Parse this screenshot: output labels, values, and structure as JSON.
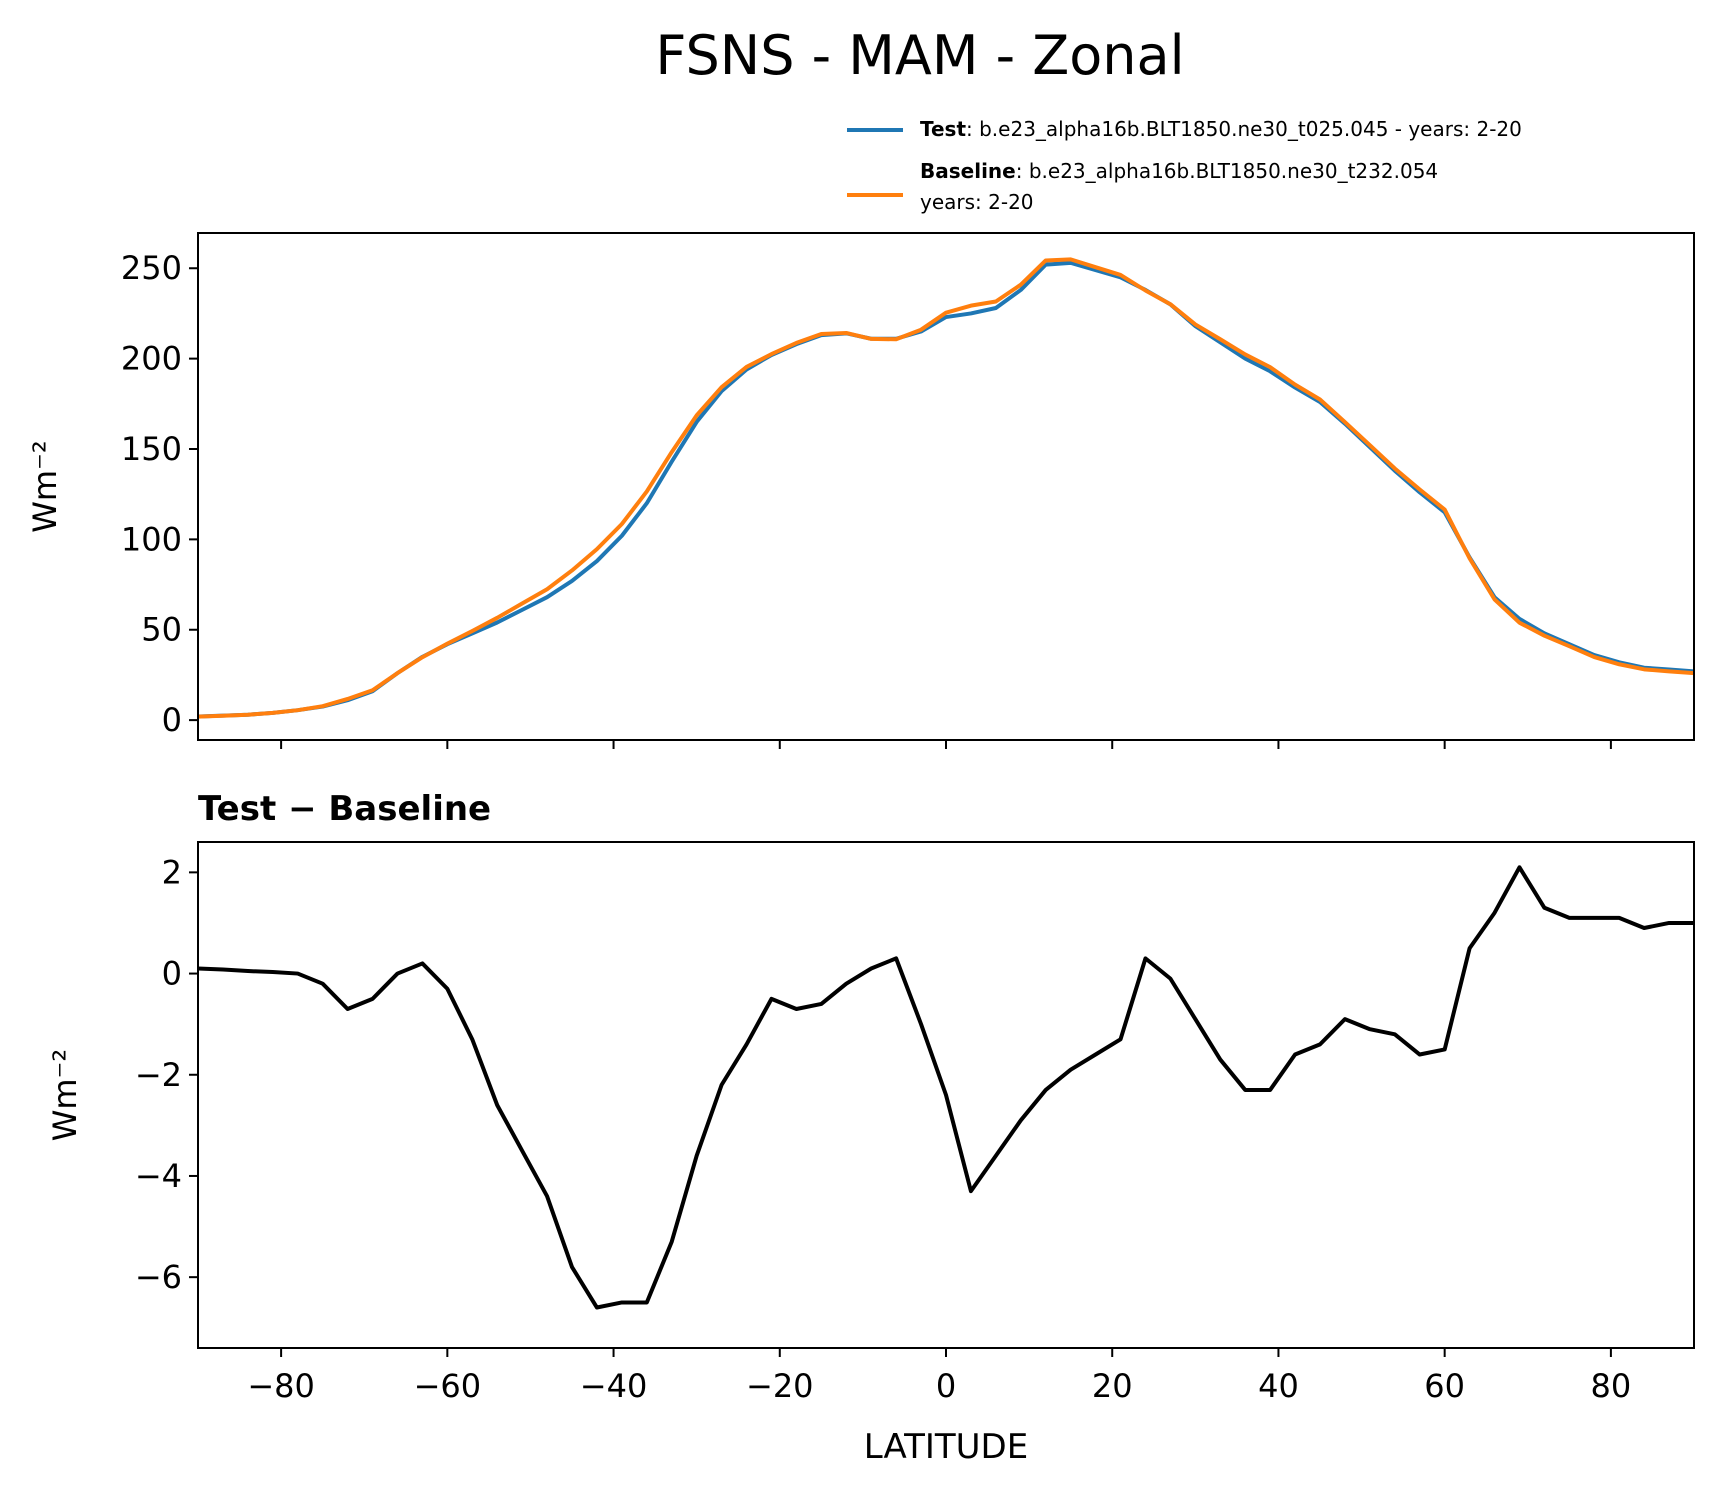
{
  "chart_data": [
    {
      "type": "line",
      "title": "FSNS - MAM - Zonal",
      "ylabel": "Wm⁻²",
      "x": [
        -90,
        -87,
        -84,
        -81,
        -78,
        -75,
        -72,
        -69,
        -66,
        -63,
        -60,
        -57,
        -54,
        -51,
        -48,
        -45,
        -42,
        -39,
        -36,
        -33,
        -30,
        -27,
        -24,
        -21,
        -18,
        -15,
        -12,
        -9,
        -6,
        -3,
        0,
        3,
        6,
        9,
        12,
        15,
        18,
        21,
        24,
        27,
        30,
        33,
        36,
        39,
        42,
        45,
        48,
        51,
        54,
        57,
        60,
        63,
        66,
        69,
        72,
        75,
        78,
        81,
        84,
        87,
        90
      ],
      "series": [
        {
          "name": "Test",
          "label_lines": [
            ": b.e23_alpha16b.BLT1850.ne30_t025.045 - years: 2-20"
          ],
          "color": "#1f77b4",
          "values": [
            2,
            2.5,
            3,
            4,
            5.5,
            7.5,
            11,
            16,
            26,
            35,
            42,
            48,
            54,
            61,
            68,
            77,
            88,
            102,
            120,
            143,
            165,
            182,
            194,
            202,
            208,
            213,
            214,
            211,
            211,
            215,
            223,
            225,
            228,
            238,
            252,
            253,
            249,
            245,
            238,
            230,
            218,
            209,
            200,
            193,
            184,
            176,
            164,
            151,
            138,
            126,
            115,
            90,
            68,
            56,
            48,
            42,
            36,
            32,
            29,
            28,
            27
          ]
        },
        {
          "name": "Baseline",
          "label_lines": [
            ": b.e23_alpha16b.BLT1850.ne30_t232.054",
            "years: 2-20"
          ],
          "color": "#ff7f0e",
          "values": [
            1.9,
            2.4,
            3.0,
            4.0,
            5.5,
            7.7,
            11.7,
            16.5,
            26,
            34.8,
            42.3,
            49.3,
            56.6,
            64.5,
            72.4,
            82.8,
            94.6,
            108.5,
            126.5,
            148.3,
            168.6,
            184.2,
            195.4,
            202.5,
            208.7,
            213.6,
            214.2,
            210.9,
            210.7,
            216,
            225.4,
            229.3,
            231.6,
            240.9,
            254.3,
            254.9,
            250.6,
            246.3,
            237.7,
            230.1,
            218.9,
            210.7,
            202.3,
            195.3,
            185.6,
            177.4,
            164.9,
            152.1,
            139.2,
            127.6,
            116.5,
            89.5,
            66.8,
            53.9,
            46.7,
            40.9,
            34.9,
            30.9,
            28.1,
            27,
            26
          ]
        }
      ],
      "xlim": [
        -90,
        90
      ],
      "xticks": [
        -80,
        -60,
        -40,
        -20,
        0,
        20,
        40,
        60,
        80
      ],
      "ylim": [
        -11,
        269.5
      ],
      "yticks": [
        0,
        50,
        100,
        150,
        200,
        250
      ]
    },
    {
      "type": "line",
      "title": "Test − Baseline",
      "ylabel": "Wm⁻²",
      "xlabel": "LATITUDE",
      "x": [
        -90,
        -87,
        -84,
        -81,
        -78,
        -75,
        -72,
        -69,
        -66,
        -63,
        -60,
        -57,
        -54,
        -51,
        -48,
        -45,
        -42,
        -39,
        -36,
        -33,
        -30,
        -27,
        -24,
        -21,
        -18,
        -15,
        -12,
        -9,
        -6,
        -3,
        0,
        3,
        6,
        9,
        12,
        15,
        18,
        21,
        24,
        27,
        30,
        33,
        36,
        39,
        42,
        45,
        48,
        51,
        54,
        57,
        60,
        63,
        66,
        69,
        72,
        75,
        78,
        81,
        84,
        87,
        90
      ],
      "series": [
        {
          "color": "#000000",
          "values": [
            0.1,
            0.08,
            0.05,
            0.03,
            0.0,
            -0.2,
            -0.7,
            -0.5,
            0,
            0.2,
            -0.3,
            -1.3,
            -2.6,
            -3.5,
            -4.4,
            -5.8,
            -6.6,
            -6.5,
            -6.5,
            -5.3,
            -3.6,
            -2.2,
            -1.4,
            -0.5,
            -0.7,
            -0.6,
            -0.2,
            0.1,
            0.3,
            -1.0,
            -2.4,
            -4.3,
            -3.6,
            -2.9,
            -2.3,
            -1.9,
            -1.6,
            -1.3,
            0.3,
            -0.1,
            -0.9,
            -1.7,
            -2.3,
            -2.3,
            -1.6,
            -1.4,
            -0.9,
            -1.1,
            -1.2,
            -1.6,
            -1.5,
            0.5,
            1.2,
            2.1,
            1.3,
            1.1,
            1.1,
            1.1,
            0.9,
            1.0,
            1.0
          ]
        }
      ],
      "xlim": [
        -90,
        90
      ],
      "xticks": [
        {
          "value": -80,
          "label": "−80"
        },
        {
          "value": -60,
          "label": "−60"
        },
        {
          "value": -40,
          "label": "−40"
        },
        {
          "value": -20,
          "label": "−20"
        },
        0,
        20,
        40,
        60,
        80
      ],
      "ylim": [
        -7.4,
        2.6
      ],
      "yticks": [
        {
          "value": -6,
          "label": "−6"
        },
        {
          "value": -4,
          "label": "−4"
        },
        {
          "value": -2,
          "label": "−2"
        },
        0,
        2
      ]
    }
  ]
}
